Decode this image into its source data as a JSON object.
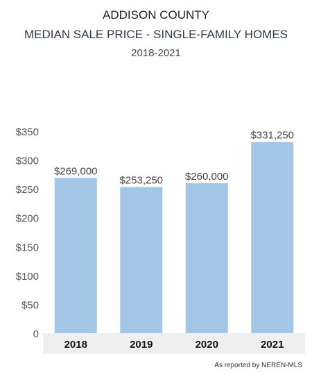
{
  "header": {
    "title": "ADDISON COUNTY",
    "subtitle": "MEDIAN SALE PRICE - SINGLE-FAMILY HOMES",
    "years": "2018-2021"
  },
  "source": "As reported by NEREN-MLS",
  "colors": {
    "bar": "#a3c5e6",
    "axis_band": "#efefef"
  },
  "chart_data": {
    "type": "bar",
    "categories": [
      "2018",
      "2019",
      "2020",
      "2021"
    ],
    "values": [
      269000,
      253250,
      260000,
      331250
    ],
    "data_labels": [
      "$269,000",
      "$253,250",
      "$260,000",
      "$331,250"
    ],
    "y_ticks": [
      "0",
      "$50",
      "$100",
      "$150",
      "$200",
      "$250",
      "$300",
      "$350"
    ],
    "ylim": [
      0,
      350000
    ],
    "grid": false
  }
}
